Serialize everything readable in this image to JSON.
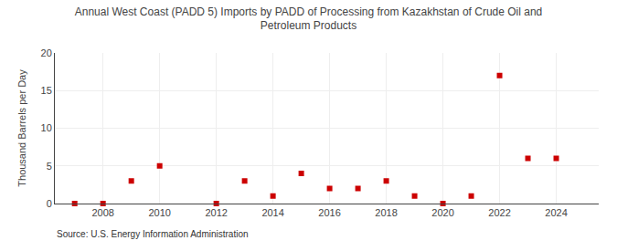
{
  "chart_data": {
    "type": "scatter",
    "title": "Annual West Coast (PADD 5) Imports by PADD of Processing from Kazakhstan of Crude Oil and\nPetroleum Products",
    "ylabel": "Thousand Barrels per Day",
    "annotations": [
      "Source: U.S. Energy Information Administration"
    ],
    "x": [
      2007,
      2008,
      2009,
      2010,
      2011,
      2012,
      2013,
      2014,
      2015,
      2016,
      2017,
      2018,
      2019,
      2020,
      2021,
      2022,
      2023,
      2024
    ],
    "values": [
      0.0,
      0.0,
      3.0,
      5.0,
      null,
      0.0,
      3.0,
      1.0,
      4.0,
      2.0,
      2.0,
      3.0,
      1.0,
      0.0,
      1.0,
      17.0,
      6.0,
      6.0
    ],
    "color": "#cc0000",
    "marker": "square",
    "xlim": [
      2006.3,
      2025.5
    ],
    "xticks": [
      2008,
      2010,
      2012,
      2014,
      2016,
      2018,
      2020,
      2022,
      2024
    ],
    "ylim": [
      0,
      20
    ],
    "yticks": [
      0,
      5,
      10,
      15,
      20
    ],
    "grid": true
  }
}
